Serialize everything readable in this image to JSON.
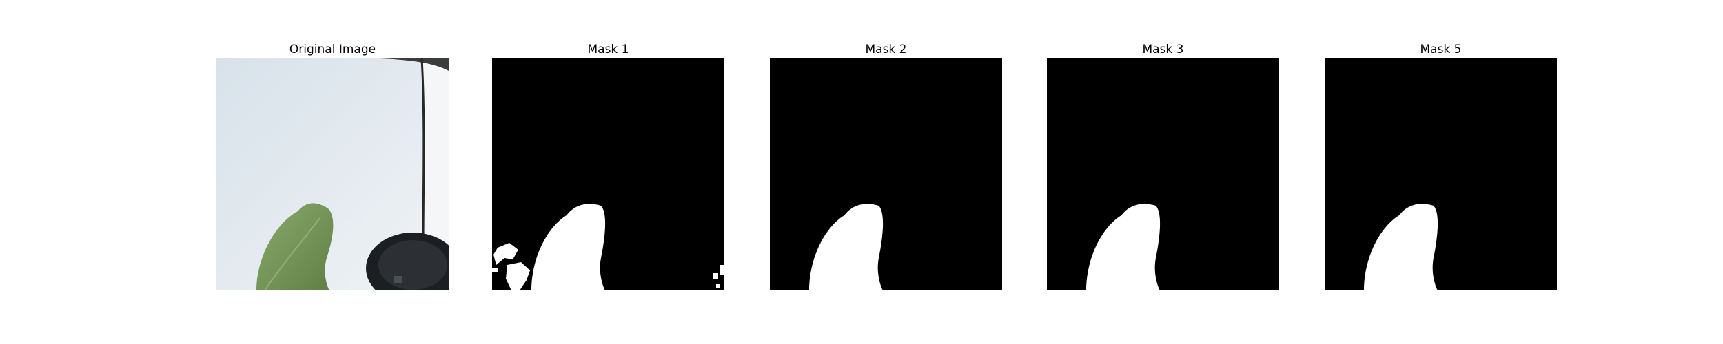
{
  "figure": {
    "panels": [
      {
        "title": "Original Image",
        "kind": "photo"
      },
      {
        "title": "Mask 1",
        "kind": "mask",
        "variant": "noisy"
      },
      {
        "title": "Mask 2",
        "kind": "mask",
        "variant": "clean"
      },
      {
        "title": "Mask 3",
        "kind": "mask",
        "variant": "clean"
      },
      {
        "title": "Mask 5",
        "kind": "mask",
        "variant": "clean"
      }
    ]
  },
  "colors": {
    "mask_background": "#000000",
    "mask_foreground": "#ffffff",
    "wall": "#dfe7ee",
    "leaf": "#7e9e5f",
    "pot": "#1c1f22",
    "pole": "#2a2825"
  }
}
